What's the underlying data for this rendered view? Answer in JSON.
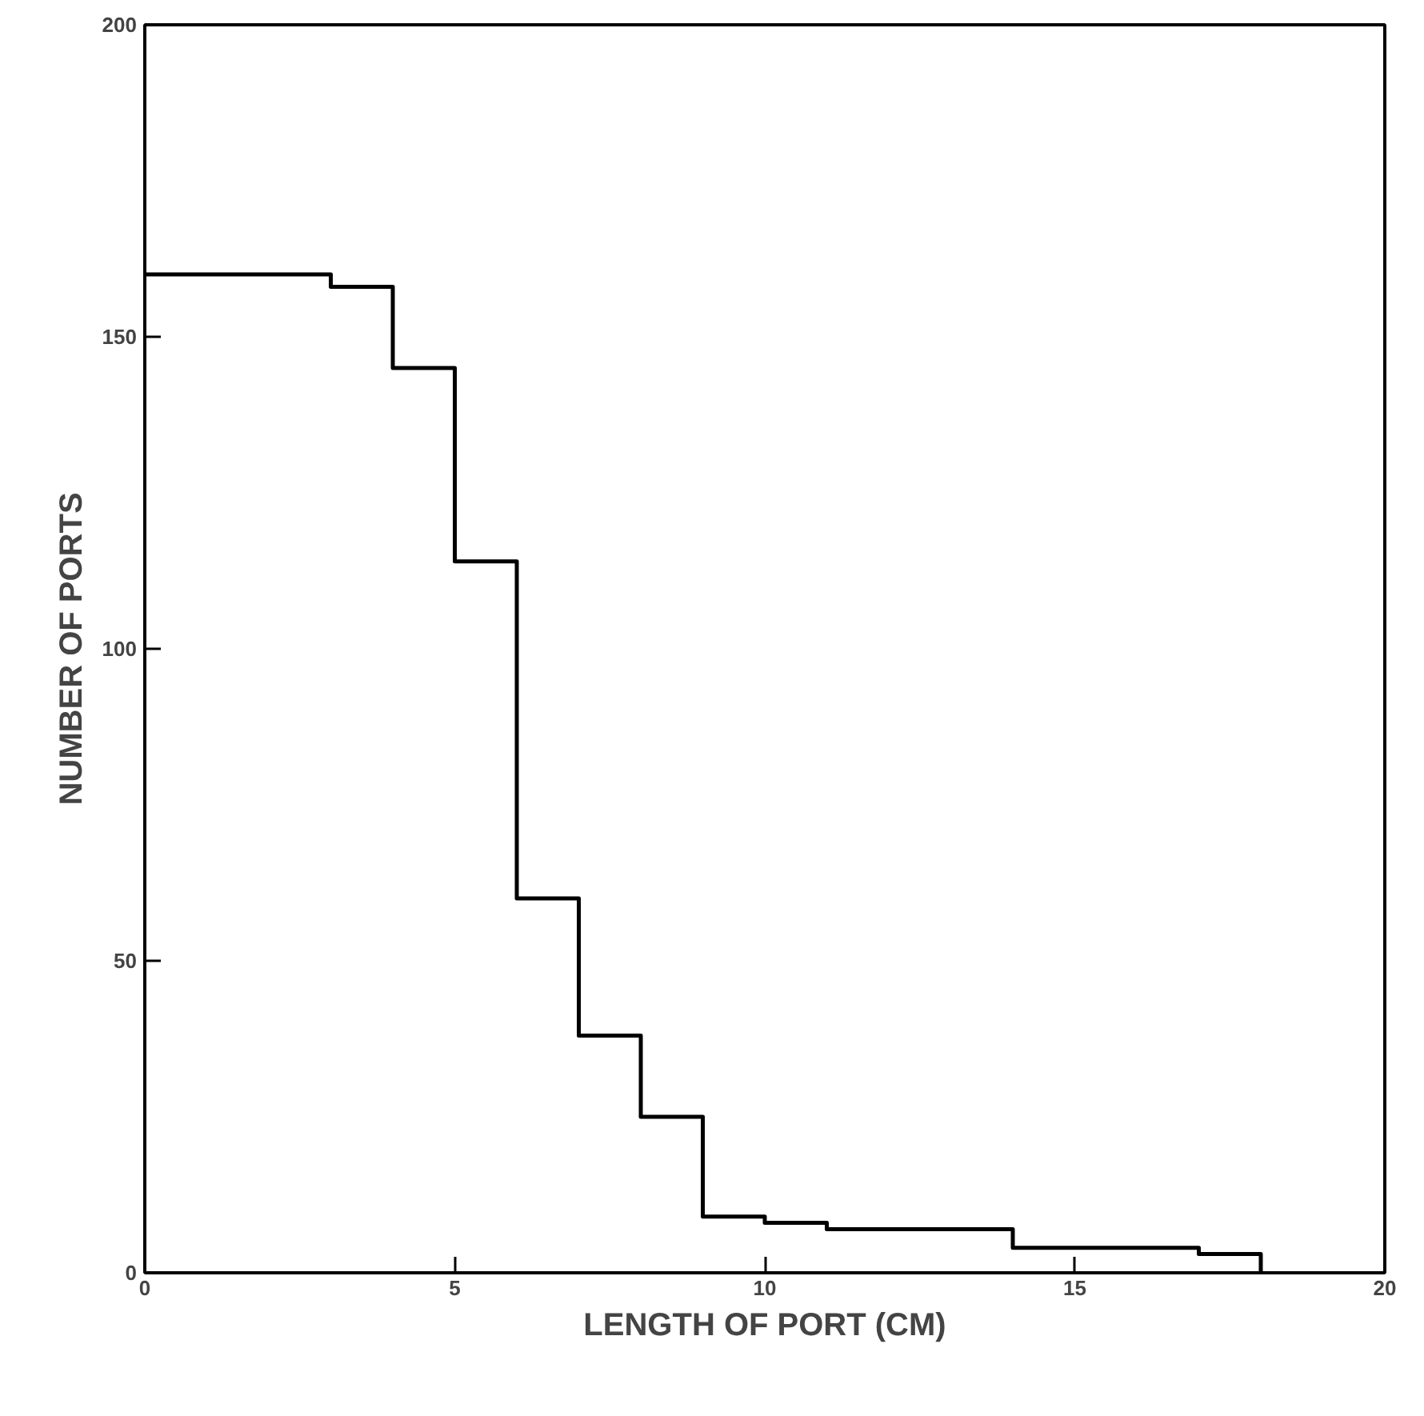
{
  "chart_data": {
    "type": "histogram",
    "xlabel": "LENGTH OF PORT (CM)",
    "ylabel": "NUMBER OF PORTS",
    "bins": [
      0,
      3,
      4,
      5,
      6,
      7,
      8,
      9,
      10,
      11,
      14,
      17,
      18
    ],
    "values": [
      160,
      158,
      145,
      114,
      60,
      38,
      25,
      9,
      8,
      7,
      4,
      3
    ],
    "color": "#000000",
    "xlim": [
      0,
      20
    ],
    "ylim": [
      0,
      200
    ],
    "xticks": [
      0,
      5,
      10,
      15,
      20
    ],
    "yticks": [
      0,
      50,
      100,
      150,
      200
    ],
    "grid": false
  }
}
